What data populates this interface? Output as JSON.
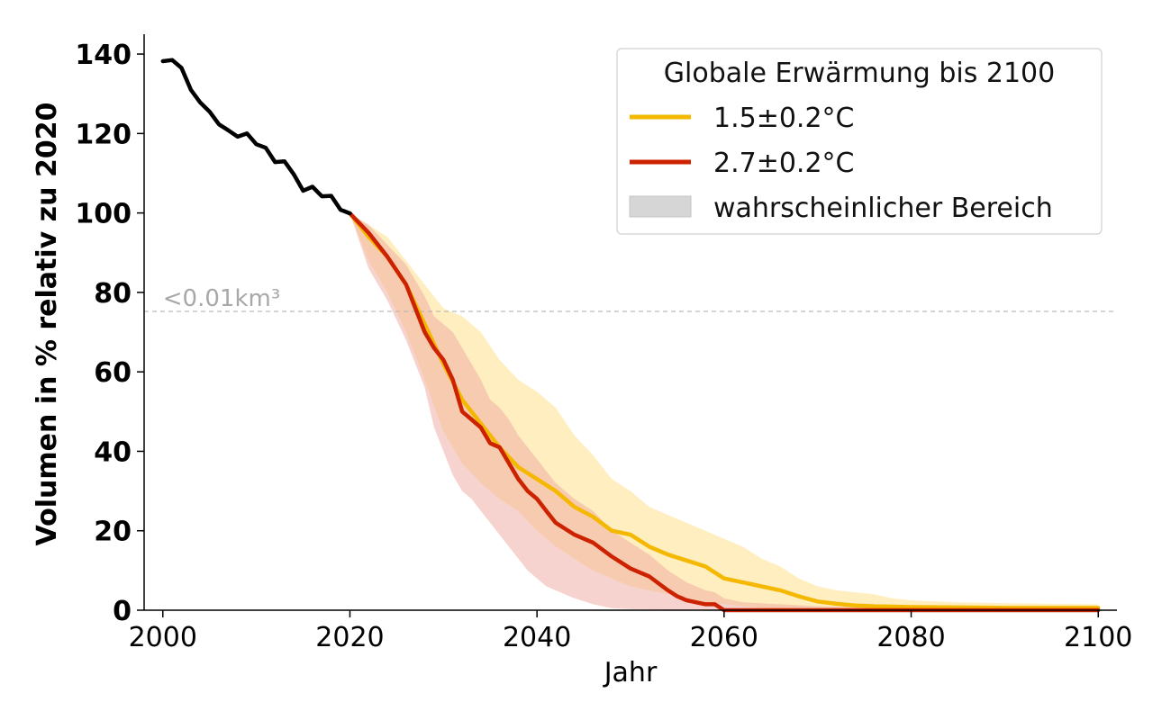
{
  "chart_data": {
    "type": "line",
    "xlabel": "Jahr",
    "ylabel": "Volumen in % relativ zu 2020",
    "xlim": [
      1998,
      2102
    ],
    "ylim": [
      0,
      145
    ],
    "xticks": [
      2000,
      2020,
      2040,
      2060,
      2080,
      2100
    ],
    "yticks": [
      0,
      20,
      40,
      60,
      80,
      100,
      120,
      140
    ],
    "grid": false,
    "legend": {
      "title": "Globale Erwärmung bis 2100",
      "placement": "top-right",
      "items": [
        {
          "label": "1.5±0.2°C",
          "color": "#f5b800",
          "kind": "line"
        },
        {
          "label": "2.7±0.2°C",
          "color": "#cc2200",
          "kind": "line"
        },
        {
          "label": "wahrscheinlicher Bereich",
          "color": "#d6d6d6",
          "kind": "patch"
        }
      ]
    },
    "annotation": {
      "text": "<0.01km³",
      "y": 75.2,
      "color": "#a8a8a8"
    },
    "historical": {
      "color": "#000000",
      "x": [
        2000,
        2001,
        2002,
        2003,
        2004,
        2005,
        2006,
        2007,
        2008,
        2009,
        2010,
        2011,
        2012,
        2013,
        2014,
        2015,
        2016,
        2017,
        2018,
        2019,
        2020
      ],
      "y": [
        138.2,
        138.5,
        136.5,
        131,
        127.8,
        125.5,
        122.3,
        120.8,
        119.2,
        120,
        117.3,
        116.4,
        112.8,
        113,
        109.7,
        105.6,
        106.6,
        104.2,
        104.3,
        100.8,
        99.9
      ]
    },
    "series": [
      {
        "name": "1.5±0.2°C",
        "color": "#f5b800",
        "band_color": "#ffe08a",
        "x": [
          2020,
          2022,
          2024,
          2026,
          2028,
          2030,
          2032,
          2034,
          2036,
          2038,
          2040,
          2042,
          2044,
          2046,
          2048,
          2050,
          2052,
          2054,
          2056,
          2058,
          2060,
          2062,
          2064,
          2066,
          2068,
          2070,
          2072,
          2074,
          2076,
          2078,
          2080,
          2085,
          2090,
          2095,
          2100
        ],
        "y": [
          99.9,
          94,
          89,
          82,
          72,
          62,
          53,
          47,
          41,
          36,
          33,
          30,
          26,
          23.5,
          20,
          19,
          16,
          14,
          12.5,
          11,
          8,
          7,
          6,
          5,
          3.5,
          2.2,
          1.6,
          1.2,
          1,
          0.9,
          0.8,
          0.7,
          0.6,
          0.6,
          0.6
        ],
        "lower": [
          99.9,
          88,
          80,
          70,
          58,
          45,
          37,
          32,
          28,
          25,
          20,
          16,
          13,
          10,
          8,
          6,
          5,
          4,
          3,
          2,
          1.5,
          1,
          0.5,
          0.3,
          0.2,
          0.2,
          0.2,
          0.1,
          0.1,
          0.1,
          0.1,
          0,
          0,
          0,
          0
        ],
        "upper": [
          99.9,
          97,
          94,
          88,
          82,
          76,
          74,
          70,
          63,
          58,
          55,
          51,
          44,
          39,
          33,
          30,
          26,
          24,
          22,
          20,
          18,
          16,
          13,
          11,
          8,
          6,
          5,
          4.5,
          4,
          3,
          2.5,
          2,
          1.8,
          1.6,
          1.5
        ]
      },
      {
        "name": "2.7±0.2°C",
        "color": "#cc2200",
        "band_color": "#f0a8a0",
        "x": [
          2020,
          2022,
          2024,
          2026,
          2028,
          2029,
          2030,
          2031,
          2032,
          2033,
          2034,
          2035,
          2036,
          2037,
          2038,
          2039,
          2040,
          2041,
          2042,
          2044,
          2046,
          2048,
          2050,
          2052,
          2054,
          2055,
          2056,
          2058,
          2059,
          2060,
          2062,
          2070,
          2080,
          2090,
          2100
        ],
        "y": [
          99.9,
          95,
          89,
          82,
          70,
          66,
          63,
          58,
          50,
          48,
          46,
          42,
          41,
          37,
          33,
          30,
          28,
          25,
          22,
          19,
          17,
          13.5,
          10.5,
          8.5,
          5,
          3.5,
          2.5,
          1.5,
          1.5,
          0,
          0,
          0,
          0,
          0,
          0
        ],
        "lower": [
          99.9,
          86,
          78,
          68,
          56,
          46,
          40,
          34,
          30,
          28,
          25,
          22,
          19,
          16,
          13,
          10,
          8,
          6,
          5,
          3,
          1.5,
          0.5,
          0.3,
          0.2,
          0.1,
          0,
          0,
          0,
          0,
          0,
          0,
          0,
          0,
          0,
          0
        ],
        "upper": [
          99.9,
          97,
          92,
          87,
          79,
          74,
          72,
          70,
          66,
          62,
          58,
          53,
          51,
          48,
          44,
          41,
          38,
          35,
          32,
          28,
          25,
          20,
          17,
          14,
          10,
          8.5,
          7,
          5,
          4.5,
          3,
          2,
          1,
          0.5,
          0.5,
          0.5
        ]
      }
    ]
  }
}
